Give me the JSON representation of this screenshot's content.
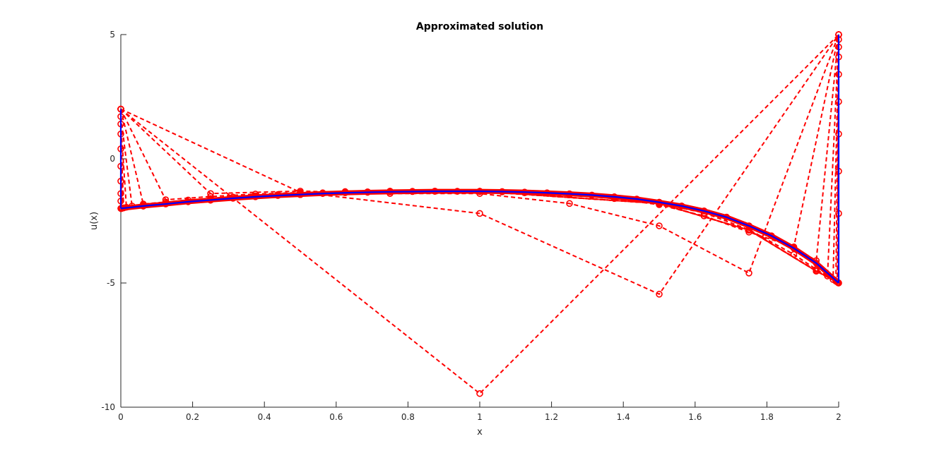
{
  "chart_data": {
    "type": "line",
    "title": "Approximated solution",
    "xlabel": "x",
    "ylabel": "u(x)",
    "xlim": [
      0,
      2
    ],
    "ylim": [
      -10,
      5
    ],
    "xticks": [
      "0",
      "0.2",
      "0.4",
      "0.6",
      "0.8",
      "1",
      "1.2",
      "1.4",
      "1.6",
      "1.8",
      "2"
    ],
    "yticks": [
      "5",
      "0",
      "-5",
      "-10"
    ],
    "grid": false,
    "legend": "none",
    "colors": {
      "approximation": "#ff0000",
      "exact": "#0000ff"
    },
    "iterate_style": {
      "line": "dashed",
      "marker": "circle"
    },
    "boundary_values": {
      "u0": -2,
      "u2": -5
    },
    "series": [
      {
        "x": [
          0,
          1,
          2
        ],
        "y": [
          2,
          -9.45,
          5
        ]
      },
      {
        "x": [
          0,
          0.5,
          1,
          1.5,
          2
        ],
        "y": [
          2,
          -1.35,
          -2.2,
          -5.45,
          5
        ]
      },
      {
        "x": [
          0,
          0.25,
          0.5,
          0.75,
          1,
          1.25,
          1.5,
          1.75,
          2
        ],
        "y": [
          2,
          -1.4,
          -1.3,
          -1.4,
          -1.4,
          -1.8,
          -2.7,
          -4.6,
          5
        ]
      },
      {
        "x": [
          0,
          0.125,
          0.25,
          0.375,
          0.5,
          0.625,
          0.75,
          0.875,
          1,
          1.125,
          1.25,
          1.375,
          1.5,
          1.625,
          1.75,
          1.875,
          2
        ],
        "y": [
          2,
          -1.65,
          -1.52,
          -1.42,
          -1.36,
          -1.32,
          -1.3,
          -1.3,
          -1.32,
          -1.37,
          -1.45,
          -1.6,
          -1.85,
          -2.3,
          -2.95,
          -3.55,
          5
        ]
      },
      {
        "x": [
          0,
          0.0625,
          0.125,
          0.1875,
          0.25,
          0.3125,
          0.375,
          0.4375,
          0.5,
          0.5625,
          0.625,
          0.6875,
          0.75,
          0.8125,
          0.875,
          0.9375,
          1,
          1.0625,
          1.125,
          1.1875,
          1.25,
          1.3125,
          1.375,
          1.4375,
          1.5,
          1.5625,
          1.625,
          1.6875,
          1.75,
          1.8125,
          1.875,
          1.9375,
          2
        ],
        "y": [
          2,
          -1.82,
          -1.74,
          -1.66,
          -1.6,
          -1.54,
          -1.49,
          -1.44,
          -1.4,
          -1.37,
          -1.35,
          -1.33,
          -1.32,
          -1.31,
          -1.31,
          -1.31,
          -1.32,
          -1.33,
          -1.35,
          -1.38,
          -1.42,
          -1.47,
          -1.54,
          -1.63,
          -1.75,
          -1.9,
          -2.1,
          -2.35,
          -2.7,
          -3.1,
          -3.55,
          -4.1,
          5
        ]
      },
      {
        "x": [
          0,
          0.03125,
          0.0625,
          0.125,
          0.25,
          0.5,
          0.75,
          1,
          1.25,
          1.5,
          1.625,
          1.75,
          1.875,
          1.9375,
          1.96875,
          2
        ],
        "y": [
          1.7,
          -1.9,
          -1.87,
          -1.8,
          -1.64,
          -1.43,
          -1.33,
          -1.31,
          -1.41,
          -1.79,
          -2.18,
          -2.85,
          -3.85,
          -4.45,
          -4.72,
          4.8
        ]
      },
      {
        "x": [
          0,
          0.015625,
          0.0625,
          0.25,
          0.5,
          1,
          1.5,
          1.75,
          1.9375,
          1.984375,
          2
        ],
        "y": [
          1.4,
          -1.95,
          -1.9,
          -1.66,
          -1.44,
          -1.31,
          -1.8,
          -2.87,
          -4.5,
          -4.86,
          4.5
        ]
      },
      {
        "x": [
          0,
          0.0078125,
          0.0625,
          0.25,
          0.5,
          1,
          1.5,
          1.75,
          1.9375,
          1.9921875,
          2
        ],
        "y": [
          1.0,
          -1.98,
          -1.9,
          -1.66,
          -1.44,
          -1.31,
          -1.8,
          -2.87,
          -4.52,
          -4.93,
          4.1
        ]
      },
      {
        "x": [
          0,
          0.00390625,
          0.0625,
          0.25,
          0.5,
          1,
          1.5,
          1.75,
          1.9375,
          1.99609375,
          2
        ],
        "y": [
          0.4,
          -1.99,
          -1.9,
          -1.66,
          -1.44,
          -1.31,
          -1.8,
          -2.87,
          -4.52,
          -4.96,
          3.4
        ]
      },
      {
        "x": [
          0,
          0.00195,
          0.0625,
          0.25,
          0.5,
          1,
          1.5,
          1.75,
          1.9375,
          1.99805,
          2
        ],
        "y": [
          -0.3,
          -2.0,
          -1.9,
          -1.66,
          -1.44,
          -1.31,
          -1.8,
          -2.87,
          -4.52,
          -4.98,
          2.3
        ]
      },
      {
        "x": [
          0,
          0.001,
          0.0625,
          0.25,
          0.5,
          1,
          1.5,
          1.75,
          1.9375,
          1.999,
          2
        ],
        "y": [
          -0.9,
          -2.0,
          -1.9,
          -1.66,
          -1.44,
          -1.31,
          -1.8,
          -2.87,
          -4.52,
          -4.99,
          1.0
        ]
      },
      {
        "x": [
          0,
          0.0005,
          0.0625,
          0.25,
          0.5,
          1,
          1.5,
          1.75,
          1.9375,
          1.9995,
          2
        ],
        "y": [
          -1.4,
          -2.0,
          -1.9,
          -1.66,
          -1.44,
          -1.31,
          -1.8,
          -2.87,
          -4.52,
          -5.0,
          -0.5
        ]
      },
      {
        "x": [
          0,
          0.00025,
          0.0625,
          0.25,
          0.5,
          1,
          1.5,
          1.75,
          1.9375,
          1.99975,
          2
        ],
        "y": [
          -1.7,
          -2.0,
          -1.9,
          -1.66,
          -1.44,
          -1.31,
          -1.8,
          -2.87,
          -4.52,
          -5.0,
          -2.2
        ]
      }
    ],
    "exact": {
      "x": [
        0,
        0.0625,
        0.125,
        0.1875,
        0.25,
        0.3125,
        0.375,
        0.4375,
        0.5,
        0.5625,
        0.625,
        0.6875,
        0.75,
        0.8125,
        0.875,
        0.9375,
        1,
        1.0625,
        1.125,
        1.1875,
        1.25,
        1.3125,
        1.375,
        1.4375,
        1.5,
        1.5625,
        1.625,
        1.6875,
        1.75,
        1.8125,
        1.875,
        1.9375,
        2
      ],
      "y": [
        -2,
        -1.9,
        -1.82,
        -1.73,
        -1.66,
        -1.59,
        -1.53,
        -1.48,
        -1.44,
        -1.4,
        -1.37,
        -1.35,
        -1.33,
        -1.32,
        -1.31,
        -1.31,
        -1.31,
        -1.32,
        -1.34,
        -1.37,
        -1.41,
        -1.46,
        -1.53,
        -1.62,
        -1.75,
        -1.9,
        -2.1,
        -2.35,
        -2.7,
        -3.1,
        -3.6,
        -4.2,
        -5
      ]
    }
  }
}
